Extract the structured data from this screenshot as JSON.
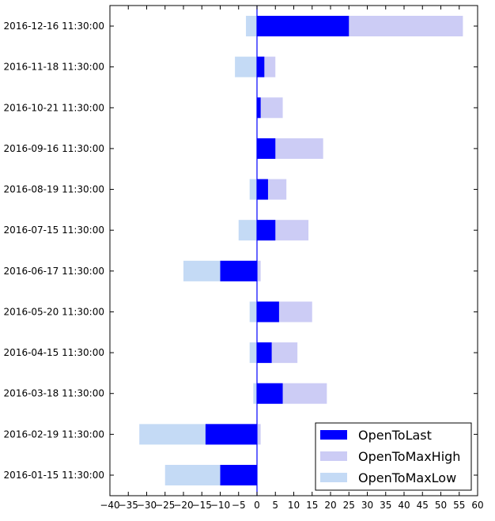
{
  "chart_data": {
    "type": "bar",
    "orientation": "horizontal",
    "stacked": false,
    "title": "",
    "xlabel": "",
    "ylabel": "",
    "xlim": [
      -40,
      60
    ],
    "x_ticks": [
      -40,
      -35,
      -30,
      -25,
      -20,
      -15,
      -10,
      -5,
      0,
      5,
      10,
      15,
      20,
      25,
      30,
      35,
      40,
      45,
      50,
      55,
      60
    ],
    "x_tick_labels": [
      "−40",
      "−35",
      "−30",
      "−25",
      "−20",
      "−15",
      "−10",
      "−5",
      "0",
      "5",
      "10",
      "15",
      "20",
      "25",
      "30",
      "35",
      "40",
      "45",
      "50",
      "55",
      "60"
    ],
    "zero_line": 0,
    "grid": false,
    "legend_position": "lower-right",
    "categories": [
      "2016-01-15 11:30:00",
      "2016-02-19 11:30:00",
      "2016-03-18 11:30:00",
      "2016-04-15 11:30:00",
      "2016-05-20 11:30:00",
      "2016-06-17 11:30:00",
      "2016-07-15 11:30:00",
      "2016-08-19 11:30:00",
      "2016-09-16 11:30:00",
      "2016-10-21 11:30:00",
      "2016-11-18 11:30:00",
      "2016-12-16 11:30:00"
    ],
    "series": [
      {
        "name": "OpenToMaxHigh",
        "color": "#ccccf5",
        "values": [
          0,
          1,
          19,
          11,
          15,
          1,
          14,
          8,
          18,
          7,
          5,
          56
        ]
      },
      {
        "name": "OpenToMaxLow",
        "color": "#c4daf5",
        "values": [
          -25,
          -32,
          -1,
          -2,
          -2,
          -20,
          -5,
          -2,
          0,
          0,
          -6,
          -3
        ]
      },
      {
        "name": "OpenToLast",
        "color": "#0000ff",
        "values": [
          -10,
          -14,
          7,
          4,
          6,
          -10,
          5,
          3,
          5,
          1,
          2,
          25
        ]
      }
    ],
    "legend_order": [
      "OpenToLast",
      "OpenToMaxHigh",
      "OpenToMaxLow"
    ]
  }
}
